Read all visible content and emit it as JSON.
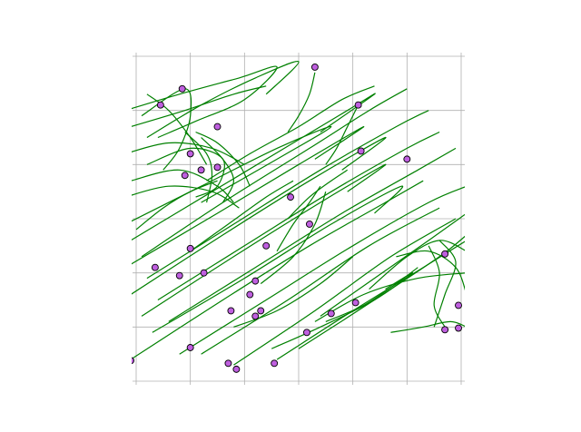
{
  "chart_data": {
    "type": "scatter",
    "title": "",
    "xlabel": "",
    "ylabel": "",
    "xlim": [
      0,
      6
    ],
    "ylim": [
      0,
      6
    ],
    "grid": true,
    "grid_ticks": [
      0,
      1,
      2,
      3,
      4,
      5,
      6
    ],
    "tick_labels_visible": false,
    "colors": {
      "trajectory": "#008000",
      "point_fill": "#bf5fdf",
      "point_edge": "#000000",
      "grid": "#b0b0b0"
    },
    "points": [
      [
        0.85,
        5.4
      ],
      [
        0.45,
        5.1
      ],
      [
        1.5,
        4.7
      ],
      [
        1.0,
        4.2
      ],
      [
        1.2,
        3.9
      ],
      [
        1.5,
        3.95
      ],
      [
        0.9,
        3.8
      ],
      [
        3.3,
        5.8
      ],
      [
        4.1,
        5.1
      ],
      [
        4.15,
        4.25
      ],
      [
        5.0,
        4.1
      ],
      [
        2.85,
        3.4
      ],
      [
        3.2,
        2.9
      ],
      [
        1.0,
        2.45
      ],
      [
        2.4,
        2.5
      ],
      [
        0.35,
        2.1
      ],
      [
        0.8,
        1.95
      ],
      [
        1.25,
        2.0
      ],
      [
        2.2,
        1.85
      ],
      [
        2.1,
        1.6
      ],
      [
        5.7,
        2.35
      ],
      [
        5.95,
        1.4
      ],
      [
        1.75,
        1.3
      ],
      [
        2.3,
        1.3
      ],
      [
        2.2,
        1.2
      ],
      [
        3.6,
        1.25
      ],
      [
        4.05,
        1.45
      ],
      [
        5.7,
        0.95
      ],
      [
        5.95,
        0.98
      ],
      [
        3.15,
        0.9
      ],
      [
        1.0,
        0.62
      ],
      [
        1.7,
        0.33
      ],
      [
        1.85,
        0.22
      ],
      [
        2.55,
        0.33
      ],
      [
        -0.1,
        0.38
      ]
    ],
    "trajectories": [
      [
        [
          -0.2,
          5.0
        ],
        [
          0.8,
          5.3
        ],
        [
          1.9,
          5.6
        ],
        [
          2.6,
          5.8
        ],
        [
          2.0,
          5.2
        ],
        [
          1.1,
          4.8
        ],
        [
          0.4,
          4.5
        ]
      ],
      [
        [
          -0.1,
          4.7
        ],
        [
          0.9,
          5.0
        ],
        [
          1.8,
          5.3
        ],
        [
          2.4,
          5.45
        ]
      ],
      [
        [
          0.2,
          4.5
        ],
        [
          1.2,
          5.1
        ],
        [
          2.2,
          5.6
        ],
        [
          3.0,
          5.9
        ],
        [
          2.4,
          5.3
        ]
      ],
      [
        [
          -0.2,
          4.2
        ],
        [
          0.6,
          4.4
        ],
        [
          1.4,
          4.3
        ],
        [
          2.0,
          4.0
        ]
      ],
      [
        [
          0.1,
          4.9
        ],
        [
          0.9,
          5.4
        ],
        [
          1.0,
          4.9
        ],
        [
          0.8,
          4.3
        ],
        [
          0.5,
          3.9
        ]
      ],
      [
        [
          -0.1,
          3.7
        ],
        [
          0.8,
          3.9
        ],
        [
          1.5,
          3.6
        ],
        [
          1.8,
          3.3
        ]
      ],
      [
        [
          0.2,
          4.0
        ],
        [
          1.0,
          4.3
        ],
        [
          1.6,
          4.1
        ],
        [
          1.5,
          3.6
        ],
        [
          1.1,
          3.4
        ]
      ],
      [
        [
          -0.2,
          3.4
        ],
        [
          0.6,
          3.6
        ],
        [
          1.4,
          3.5
        ],
        [
          1.9,
          3.2
        ]
      ],
      [
        [
          1.2,
          4.5
        ],
        [
          1.6,
          4.1
        ],
        [
          1.8,
          3.7
        ],
        [
          1.6,
          3.3
        ]
      ],
      [
        [
          0.9,
          4.6
        ],
        [
          1.3,
          4.2
        ],
        [
          1.4,
          3.8
        ],
        [
          1.3,
          3.3
        ]
      ],
      [
        [
          -0.2,
          2.9
        ],
        [
          1.2,
          3.6
        ],
        [
          2.6,
          4.3
        ],
        [
          3.6,
          4.7
        ],
        [
          2.6,
          4.1
        ],
        [
          1.2,
          3.3
        ]
      ],
      [
        [
          -0.1,
          2.6
        ],
        [
          1.4,
          3.5
        ],
        [
          2.9,
          4.4
        ],
        [
          3.9,
          5.0
        ],
        [
          4.4,
          5.3
        ],
        [
          3.4,
          4.6
        ]
      ],
      [
        [
          0.1,
          2.3
        ],
        [
          1.6,
          3.3
        ],
        [
          3.2,
          4.3
        ],
        [
          4.3,
          5.0
        ],
        [
          5.0,
          5.4
        ]
      ],
      [
        [
          -0.2,
          2.1
        ],
        [
          1.5,
          3.1
        ],
        [
          3.0,
          4.0
        ],
        [
          4.2,
          4.7
        ],
        [
          3.3,
          4.1
        ]
      ],
      [
        [
          0.2,
          1.9
        ],
        [
          1.8,
          2.9
        ],
        [
          3.4,
          3.9
        ],
        [
          4.8,
          4.7
        ],
        [
          5.4,
          5.0
        ]
      ],
      [
        [
          -0.1,
          1.6
        ],
        [
          1.6,
          2.7
        ],
        [
          3.2,
          3.7
        ],
        [
          4.6,
          4.5
        ],
        [
          3.8,
          3.9
        ]
      ],
      [
        [
          0.4,
          1.5
        ],
        [
          2.0,
          2.5
        ],
        [
          3.6,
          3.5
        ],
        [
          5.0,
          4.3
        ],
        [
          5.6,
          4.6
        ]
      ],
      [
        [
          0.1,
          1.2
        ],
        [
          1.8,
          2.3
        ],
        [
          3.4,
          3.3
        ],
        [
          4.6,
          4.0
        ],
        [
          3.9,
          3.5
        ]
      ],
      [
        [
          0.6,
          1.1
        ],
        [
          2.2,
          2.1
        ],
        [
          3.8,
          3.1
        ],
        [
          5.2,
          3.9
        ],
        [
          5.9,
          4.3
        ]
      ],
      [
        [
          0.3,
          0.9
        ],
        [
          2.0,
          1.9
        ],
        [
          3.6,
          2.9
        ],
        [
          4.9,
          3.6
        ],
        [
          4.4,
          3.1
        ]
      ],
      [
        [
          -0.1,
          0.4
        ],
        [
          1.6,
          1.5
        ],
        [
          3.2,
          2.5
        ],
        [
          4.6,
          3.3
        ],
        [
          5.3,
          3.7
        ]
      ],
      [
        [
          0.8,
          0.5
        ],
        [
          2.4,
          1.5
        ],
        [
          4.0,
          2.5
        ],
        [
          5.4,
          3.3
        ],
        [
          6.1,
          3.6
        ]
      ],
      [
        [
          1.2,
          0.5
        ],
        [
          2.8,
          1.5
        ],
        [
          4.3,
          2.5
        ],
        [
          5.6,
          3.2
        ]
      ],
      [
        [
          1.8,
          0.3
        ],
        [
          3.3,
          1.3
        ],
        [
          4.7,
          2.3
        ],
        [
          5.9,
          3.0
        ]
      ],
      [
        [
          2.6,
          0.4
        ],
        [
          4.0,
          1.3
        ],
        [
          5.3,
          2.1
        ],
        [
          6.1,
          2.6
        ]
      ],
      [
        [
          3.0,
          0.6
        ],
        [
          4.4,
          1.5
        ],
        [
          5.6,
          2.3
        ],
        [
          6.1,
          2.7
        ]
      ],
      [
        [
          3.4,
          1.2
        ],
        [
          4.4,
          1.9
        ],
        [
          5.4,
          2.6
        ],
        [
          6.1,
          3.1
        ]
      ],
      [
        [
          3.3,
          1.1
        ],
        [
          4.2,
          1.6
        ],
        [
          5.2,
          1.9
        ],
        [
          6.1,
          2.0
        ]
      ],
      [
        [
          4.3,
          1.7
        ],
        [
          5.0,
          2.3
        ],
        [
          5.6,
          2.6
        ],
        [
          6.1,
          2.4
        ]
      ],
      [
        [
          4.8,
          2.3
        ],
        [
          5.4,
          2.4
        ],
        [
          5.9,
          2.1
        ],
        [
          6.1,
          1.6
        ]
      ],
      [
        [
          5.6,
          2.6
        ],
        [
          5.9,
          2.2
        ],
        [
          5.7,
          1.6
        ],
        [
          5.5,
          1.0
        ]
      ],
      [
        [
          5.4,
          2.5
        ],
        [
          5.6,
          2.0
        ],
        [
          5.5,
          1.4
        ],
        [
          5.7,
          1.0
        ]
      ],
      [
        [
          4.7,
          0.9
        ],
        [
          5.3,
          1.0
        ],
        [
          5.8,
          1.1
        ],
        [
          6.1,
          1.0
        ]
      ],
      [
        [
          3.5,
          1.1
        ],
        [
          4.2,
          1.4
        ],
        [
          4.8,
          1.8
        ],
        [
          5.2,
          2.1
        ]
      ],
      [
        [
          2.5,
          0.6
        ],
        [
          3.4,
          1.0
        ],
        [
          4.4,
          1.5
        ],
        [
          5.1,
          2.0
        ],
        [
          4.6,
          1.7
        ]
      ],
      [
        [
          1.8,
          1.0
        ],
        [
          2.6,
          1.3
        ],
        [
          3.4,
          1.8
        ],
        [
          4.0,
          2.3
        ]
      ],
      [
        [
          2.3,
          1.8
        ],
        [
          2.9,
          2.3
        ],
        [
          3.3,
          2.9
        ],
        [
          3.5,
          3.5
        ]
      ],
      [
        [
          2.6,
          2.4
        ],
        [
          2.9,
          2.9
        ],
        [
          3.2,
          3.3
        ],
        [
          3.4,
          3.6
        ]
      ],
      [
        [
          1.0,
          2.4
        ],
        [
          1.7,
          2.9
        ],
        [
          2.4,
          3.4
        ],
        [
          2.9,
          3.7
        ]
      ],
      [
        [
          2.8,
          3.0
        ],
        [
          3.2,
          3.4
        ],
        [
          3.6,
          3.7
        ],
        [
          3.9,
          3.9
        ]
      ],
      [
        [
          1.1,
          4.6
        ],
        [
          1.5,
          4.4
        ],
        [
          1.9,
          4.0
        ],
        [
          2.1,
          3.6
        ]
      ],
      [
        [
          0.2,
          5.3
        ],
        [
          0.6,
          5.0
        ],
        [
          1.0,
          4.5
        ],
        [
          1.3,
          4.0
        ]
      ],
      [
        [
          1.3,
          3.7
        ],
        [
          2.1,
          4.2
        ],
        [
          3.0,
          4.7
        ],
        [
          3.8,
          5.2
        ],
        [
          4.4,
          5.45
        ]
      ],
      [
        [
          3.3,
          5.7
        ],
        [
          3.2,
          5.3
        ],
        [
          3.0,
          4.9
        ],
        [
          2.8,
          4.6
        ]
      ],
      [
        [
          4.1,
          5.1
        ],
        [
          3.9,
          4.7
        ],
        [
          3.7,
          4.3
        ],
        [
          3.5,
          4.0
        ]
      ],
      [
        [
          0.0,
          2.8
        ],
        [
          0.5,
          3.2
        ],
        [
          1.0,
          3.5
        ],
        [
          1.5,
          3.7
        ]
      ]
    ]
  }
}
